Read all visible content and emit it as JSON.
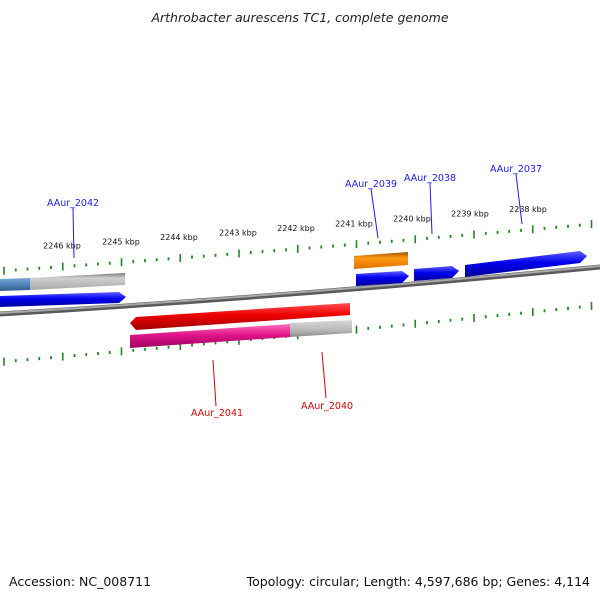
{
  "title": "Arthrobacter aurescens TC1, complete genome",
  "footer": {
    "accession": "Accession: NC_008711",
    "stats": "Topology: circular; Length: 4,597,686 bp; Genes: 4,114"
  },
  "scale": {
    "ticks": [
      "2246 kbp",
      "2245 kbp",
      "2244 kbp",
      "2243 kbp",
      "2242 kbp",
      "2241 kbp",
      "2240 kbp",
      "2239 kbp",
      "2238 kbp"
    ]
  },
  "genes": {
    "forward": [
      "AAur_2042",
      "AAur_2039",
      "AAur_2038",
      "AAur_2037"
    ],
    "reverse": [
      "AAur_2041",
      "AAur_2040"
    ]
  },
  "colors": {
    "forward_label": "#1a1aff",
    "reverse_label": "#e00000",
    "forward_gene": "#0000ee",
    "reverse_gene": "#ee0000",
    "pink_gene": "#ee1493",
    "orange_gene": "#ff8c00",
    "steel_gene": "#4f84bd",
    "grey_gene": "#b8b8b8",
    "backbone": "#808080",
    "tick": "#1a8a1a"
  }
}
